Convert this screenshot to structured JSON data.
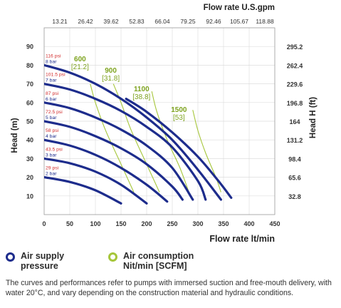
{
  "chart_data": {
    "type": "line",
    "top_axis_title": "Flow rate U.S.gpm",
    "top_ticks": [
      "13.21",
      "26.42",
      "39.62",
      "52.83",
      "66.04",
      "79.25",
      "92.46",
      "105.67",
      "118.88"
    ],
    "xlabel": "Flow rate lt/min",
    "x_ticks": [
      "0",
      "50",
      "100",
      "150",
      "200",
      "250",
      "300",
      "350",
      "400",
      "450"
    ],
    "xlim": [
      0,
      450
    ],
    "ylabel_left": "Head (m)",
    "y_ticks_left": [
      "10",
      "20",
      "30",
      "40",
      "50",
      "60",
      "70",
      "80",
      "90"
    ],
    "ylim": [
      0,
      100
    ],
    "ylabel_right": "Head H (ft)",
    "y_ticks_right": [
      "32.8",
      "65.6",
      "98.4",
      "131.2",
      "164",
      "196.8",
      "229.6",
      "262.4",
      "295.2"
    ],
    "grid": true,
    "pressure_series": [
      {
        "psi": "29 psi",
        "bar": "2 bar",
        "x": [
          0,
          50,
          100,
          150
        ],
        "y": [
          20,
          17.5,
          13,
          6
        ]
      },
      {
        "psi": "43.5 psi",
        "bar": "3 bar",
        "x": [
          0,
          50,
          100,
          150,
          200
        ],
        "y": [
          30,
          27.5,
          23,
          16,
          6
        ]
      },
      {
        "psi": "58 psi",
        "bar": "4 bar",
        "x": [
          0,
          50,
          100,
          150,
          200,
          240
        ],
        "y": [
          40,
          37,
          32,
          25,
          16,
          7
        ]
      },
      {
        "psi": "72.5 psi",
        "bar": "5 bar",
        "x": [
          0,
          50,
          100,
          150,
          200,
          250,
          270
        ],
        "y": [
          50,
          47,
          42,
          35.5,
          27,
          15,
          8
        ]
      },
      {
        "psi": "87 psi",
        "bar": "6 bar",
        "x": [
          0,
          50,
          100,
          150,
          200,
          250,
          290
        ],
        "y": [
          60,
          57,
          52,
          45.5,
          37,
          25,
          8
        ]
      },
      {
        "psi": "101.5 psi",
        "bar": "7 bar",
        "x": [
          0,
          50,
          100,
          150,
          200,
          250,
          300,
          315
        ],
        "y": [
          70,
          67,
          62,
          55.5,
          47,
          36,
          18,
          8
        ]
      },
      {
        "psi": "116 psi",
        "bar": "8 bar",
        "x": [
          0,
          50,
          100,
          150,
          200,
          250,
          300,
          345
        ],
        "y": [
          80,
          76,
          70,
          62,
          52,
          40,
          24,
          8
        ]
      },
      {
        "psi": "",
        "bar": "",
        "x": [
          160,
          200,
          250,
          300,
          340,
          365
        ],
        "y": [
          62,
          55,
          44,
          31,
          18,
          9
        ]
      }
    ],
    "air_consumption_series": [
      {
        "label": "600",
        "scfm": "[21.2]",
        "x": [
          90,
          100,
          120,
          150,
          175
        ],
        "y": [
          70,
          60,
          45,
          27,
          12
        ],
        "label_x": 70,
        "label_y": 82
      },
      {
        "label": "900",
        "scfm": "[31.8]",
        "x": [
          135,
          150,
          170,
          200,
          225
        ],
        "y": [
          70,
          60,
          45,
          27,
          12
        ],
        "label_x": 130,
        "label_y": 76
      },
      {
        "label": "1100",
        "scfm": "[38.8]",
        "x": [
          210,
          220,
          240,
          265,
          285
        ],
        "y": [
          66,
          55,
          40,
          25,
          10
        ],
        "label_x": 190,
        "label_y": 66
      },
      {
        "label": "1500",
        "scfm": "[53]",
        "x": [
          290,
          300,
          315,
          335,
          345
        ],
        "y": [
          56,
          45,
          33,
          20,
          12
        ],
        "label_x": 263,
        "label_y": 55
      }
    ]
  },
  "legend": {
    "air_supply_label": "Air supply\npressure",
    "air_supply_color": "#1d2c8c",
    "air_consumption_label": "Air consumption\nNit/min [SCFM]",
    "air_consumption_color": "#a6c63a"
  },
  "note": "The curves and performances refer to pumps with immersed suction and free-mouth delivery, with water 20°C, and vary depending on the construction material and hydraulic conditions."
}
